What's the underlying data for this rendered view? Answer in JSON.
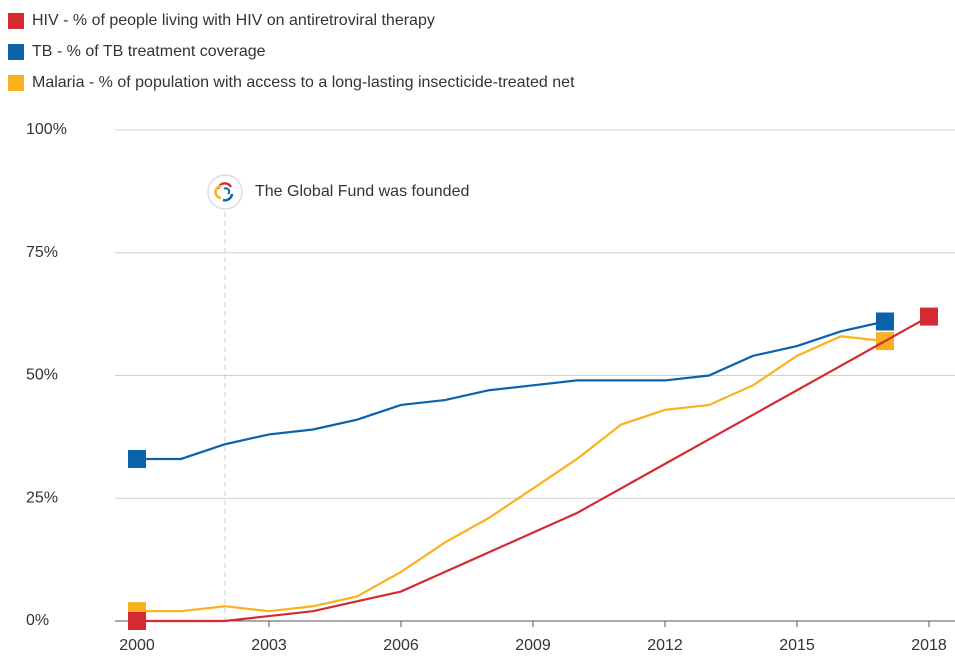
{
  "chart_data": {
    "type": "line",
    "x": [
      2000,
      2001,
      2002,
      2003,
      2004,
      2005,
      2006,
      2007,
      2008,
      2009,
      2010,
      2011,
      2012,
      2013,
      2014,
      2015,
      2016,
      2017,
      2018
    ],
    "series": [
      {
        "name": "HIV - % of people living with HIV on antiretroviral therapy",
        "color": "#d42a32",
        "values": [
          0,
          0,
          0,
          1,
          2,
          4,
          6,
          10,
          14,
          18,
          22,
          27,
          32,
          37,
          42,
          47,
          52,
          57,
          62
        ]
      },
      {
        "name": "TB - % of TB treatment coverage",
        "color": "#0a62ad",
        "values": [
          33,
          33,
          36,
          38,
          39,
          41,
          44,
          45,
          47,
          48,
          49,
          49,
          49,
          50,
          54,
          56,
          59,
          61,
          null
        ]
      },
      {
        "name": "Malaria - % of population with access to a long-lasting insecticide-treated net",
        "color": "#f9b21e",
        "values": [
          2,
          2,
          3,
          2,
          3,
          5,
          10,
          16,
          21,
          27,
          33,
          40,
          43,
          44,
          48,
          54,
          58,
          57,
          null
        ]
      }
    ],
    "xlim": [
      2000,
      2018
    ],
    "xticks": [
      2000,
      2003,
      2006,
      2009,
      2012,
      2015,
      2018
    ],
    "ylim": [
      0,
      100
    ],
    "yticks": [
      {
        "value": 0,
        "label": "0%"
      },
      {
        "value": 25,
        "label": "25%"
      },
      {
        "value": 50,
        "label": "50%"
      },
      {
        "value": 75,
        "label": "75%"
      },
      {
        "value": 100,
        "label": "100%"
      }
    ],
    "grid": true,
    "legend": "top-left",
    "annotation": {
      "text": "The Global Fund was founded",
      "x": 2002
    }
  }
}
